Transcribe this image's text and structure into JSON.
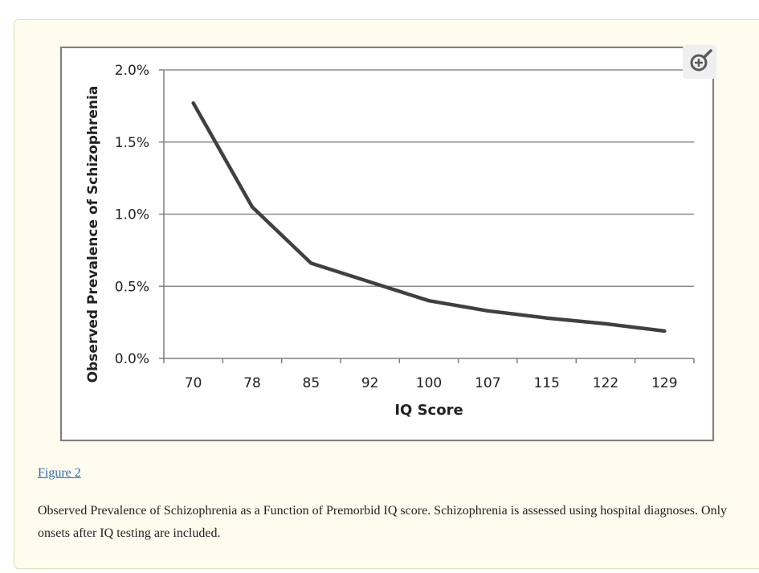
{
  "figure_link": "Figure 2",
  "caption": "Observed Prevalence of Schizophrenia as a Function of Premorbid IQ score. Schizophrenia is assessed using hospital diagnoses. Only onsets after IQ testing are included.",
  "zoom_icon": "zoom-in-magnifier-icon",
  "colors": {
    "panel_bg": "#fdfcef",
    "line": "#404040",
    "grid": "#8c8c8c",
    "link": "#3468b0"
  },
  "chart_data": {
    "type": "line",
    "title": "",
    "xlabel": "IQ Score",
    "ylabel": "Observed Prevalence of Schizophrenia",
    "categories": [
      "70",
      "78",
      "85",
      "92",
      "100",
      "107",
      "115",
      "122",
      "129"
    ],
    "series": [
      {
        "values": [
          1.77,
          1.05,
          0.66,
          0.53,
          0.4,
          0.33,
          0.28,
          0.24,
          0.19
        ]
      }
    ],
    "ylim": [
      0,
      2.0
    ],
    "yticks": [
      "0.0%",
      "0.5%",
      "1.0%",
      "1.5%",
      "2.0%"
    ],
    "ytick_values": [
      0,
      0.5,
      1.0,
      1.5,
      2.0
    ],
    "grid": true,
    "legend": "none"
  }
}
